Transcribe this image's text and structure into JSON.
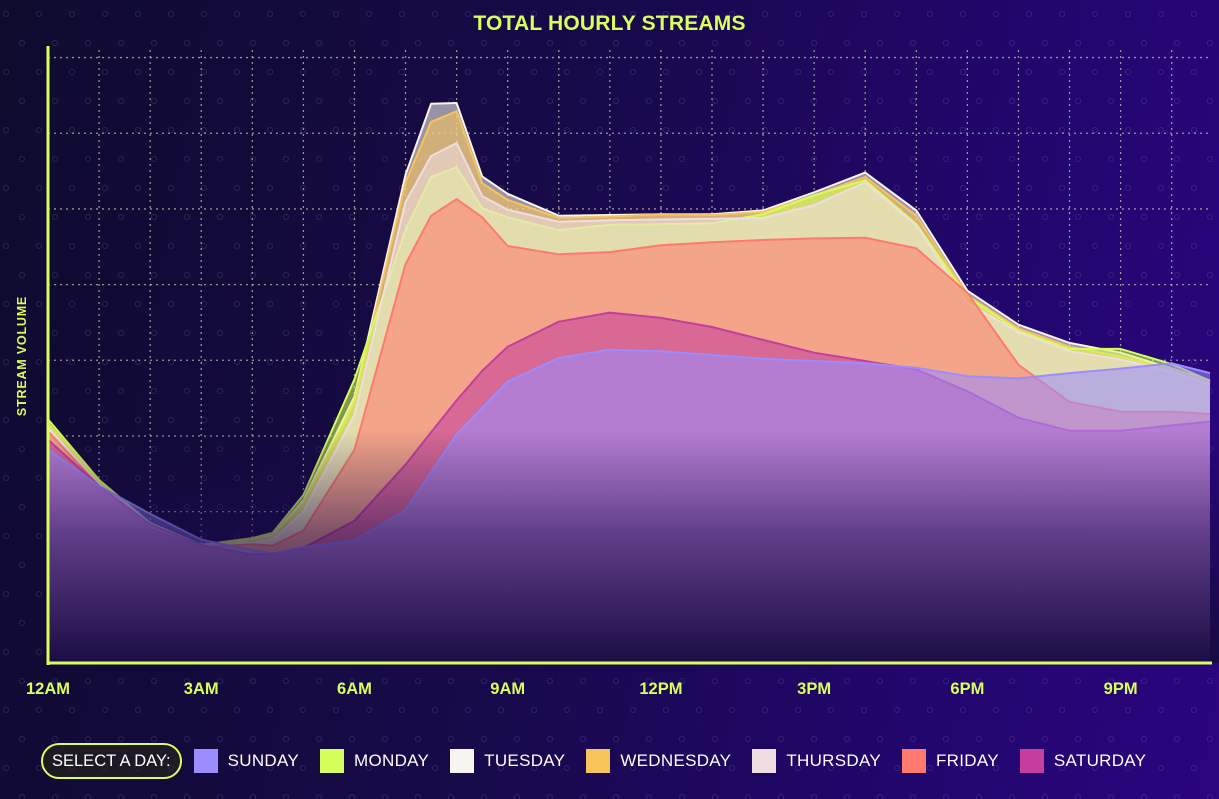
{
  "chart_data": {
    "type": "area",
    "title": "TOTAL HOURLY STREAMS",
    "xlabel": "",
    "ylabel": "STREAM VOLUME",
    "x_tick_labels": [
      "12AM",
      "3AM",
      "6AM",
      "9AM",
      "12PM",
      "3PM",
      "6PM",
      "9PM"
    ],
    "x_tick_hours": [
      0,
      3,
      6,
      9,
      12,
      15,
      18,
      21
    ],
    "xlim": [
      0,
      22.75
    ],
    "ylim": [
      0,
      8.1
    ],
    "grid": true,
    "legend_position": "bottom",
    "x": [
      0,
      1,
      2,
      3,
      4,
      4.4,
      5,
      6,
      7,
      7.5,
      8,
      8.5,
      9,
      10,
      11,
      12,
      13,
      14,
      15,
      16,
      17,
      18,
      19,
      20,
      21,
      22,
      22.75
    ],
    "series": [
      {
        "name": "SUNDAY",
        "color": "#9b8cff",
        "values": [
          2.82,
          2.34,
          1.97,
          1.63,
          1.49,
          1.45,
          1.53,
          1.62,
          2.02,
          2.52,
          3.02,
          3.37,
          3.72,
          4.03,
          4.14,
          4.12,
          4.07,
          4.02,
          3.99,
          3.96,
          3.9,
          3.79,
          3.76,
          3.83,
          3.89,
          3.96,
          3.83
        ]
      },
      {
        "name": "MONDAY",
        "color": "#d4ff5a",
        "values": [
          3.22,
          2.42,
          1.85,
          1.56,
          1.65,
          1.72,
          2.22,
          3.75,
          5.72,
          6.42,
          6.55,
          6.01,
          5.89,
          5.72,
          5.79,
          5.8,
          5.81,
          5.93,
          6.18,
          6.38,
          5.8,
          4.84,
          4.39,
          4.15,
          4.15,
          3.95,
          3.73
        ]
      },
      {
        "name": "TUESDAY",
        "color": "#f8f5f0",
        "values": [
          3.12,
          2.36,
          1.85,
          1.56,
          1.63,
          1.69,
          2.15,
          3.52,
          6.45,
          7.39,
          7.4,
          6.43,
          6.2,
          5.91,
          5.92,
          5.93,
          5.93,
          5.98,
          6.22,
          6.48,
          5.98,
          4.92,
          4.47,
          4.23,
          4.1,
          3.89,
          3.73
        ]
      },
      {
        "name": "WEDNESDAY",
        "color": "#f7c45a",
        "values": [
          3.17,
          2.4,
          1.83,
          1.55,
          1.62,
          1.67,
          2.11,
          3.46,
          6.35,
          7.15,
          7.29,
          6.34,
          6.12,
          5.88,
          5.9,
          5.93,
          5.92,
          5.96,
          6.18,
          6.42,
          5.91,
          4.86,
          4.42,
          4.18,
          4.05,
          3.88,
          3.71
        ]
      },
      {
        "name": "THURSDAY",
        "color": "#f0dde2",
        "values": [
          3.12,
          2.36,
          1.8,
          1.54,
          1.59,
          1.63,
          2.0,
          3.28,
          6.09,
          6.7,
          6.87,
          6.17,
          5.99,
          5.83,
          5.85,
          5.86,
          5.87,
          5.88,
          6.05,
          6.35,
          5.78,
          4.76,
          4.37,
          4.12,
          4.01,
          3.85,
          3.68
        ]
      },
      {
        "name": "FRIDAY",
        "color": "#ff7a6e",
        "values": [
          3.06,
          2.34,
          1.77,
          1.53,
          1.57,
          1.55,
          1.75,
          2.82,
          5.27,
          5.91,
          6.13,
          5.89,
          5.51,
          5.4,
          5.43,
          5.52,
          5.56,
          5.59,
          5.61,
          5.62,
          5.48,
          4.89,
          3.94,
          3.45,
          3.32,
          3.32,
          3.29
        ]
      },
      {
        "name": "SATURDAY",
        "color": "#c53e9e",
        "values": [
          2.95,
          2.34,
          1.83,
          1.56,
          1.43,
          1.44,
          1.52,
          1.88,
          2.62,
          3.05,
          3.47,
          3.86,
          4.18,
          4.51,
          4.63,
          4.56,
          4.44,
          4.27,
          4.1,
          3.99,
          3.88,
          3.59,
          3.24,
          3.07,
          3.07,
          3.14,
          3.19
        ]
      }
    ]
  },
  "legend": {
    "prompt": "SELECT A DAY:",
    "items": [
      {
        "label": "SUNDAY",
        "color": "#9b8cff"
      },
      {
        "label": "MONDAY",
        "color": "#d4ff5a"
      },
      {
        "label": "TUESDAY",
        "color": "#f8f5f0"
      },
      {
        "label": "WEDNESDAY",
        "color": "#f7c45a"
      },
      {
        "label": "THURSDAY",
        "color": "#f0dde2"
      },
      {
        "label": "FRIDAY",
        "color": "#ff7a6e"
      },
      {
        "label": "SATURDAY",
        "color": "#c53e9e"
      }
    ]
  },
  "colors": {
    "accent": "#d9ff5a",
    "grid": "#c6c2a8"
  }
}
